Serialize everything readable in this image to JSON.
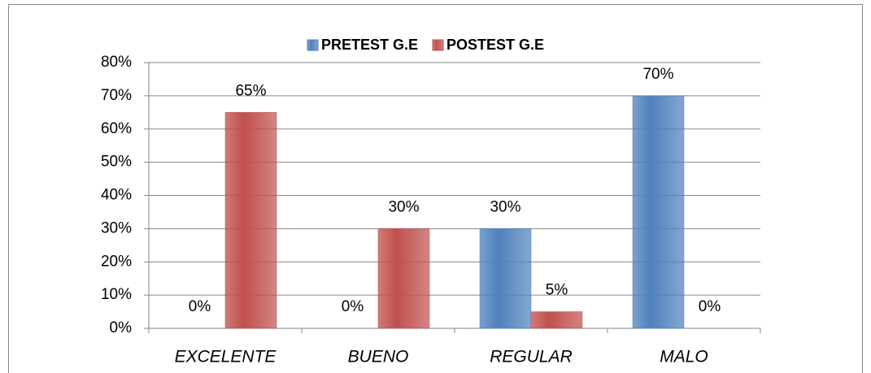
{
  "chart_data": {
    "type": "bar",
    "categories": [
      "EXCELENTE",
      "BUENO",
      "REGULAR",
      "MALO"
    ],
    "series": [
      {
        "name": "PRETEST G.E",
        "color": "#4f81bd",
        "values": [
          0,
          0,
          30,
          70
        ],
        "value_labels": [
          "0%",
          "0%",
          "30%",
          "70%"
        ]
      },
      {
        "name": "POSTEST G.E",
        "color": "#c0504d",
        "values": [
          65,
          30,
          5,
          0
        ],
        "value_labels": [
          "65%",
          "30%",
          "5%",
          "0%"
        ]
      }
    ],
    "ylim": [
      0,
      80
    ],
    "yticks": [
      {
        "value": 0,
        "label": "0%"
      },
      {
        "value": 10,
        "label": "10%"
      },
      {
        "value": 20,
        "label": "20%"
      },
      {
        "value": 30,
        "label": "30%"
      },
      {
        "value": 40,
        "label": "40%"
      },
      {
        "value": 50,
        "label": "50%"
      },
      {
        "value": 60,
        "label": "60%"
      },
      {
        "value": 70,
        "label": "70%"
      },
      {
        "value": 80,
        "label": "80%"
      }
    ],
    "grid": true,
    "legend": "top"
  }
}
